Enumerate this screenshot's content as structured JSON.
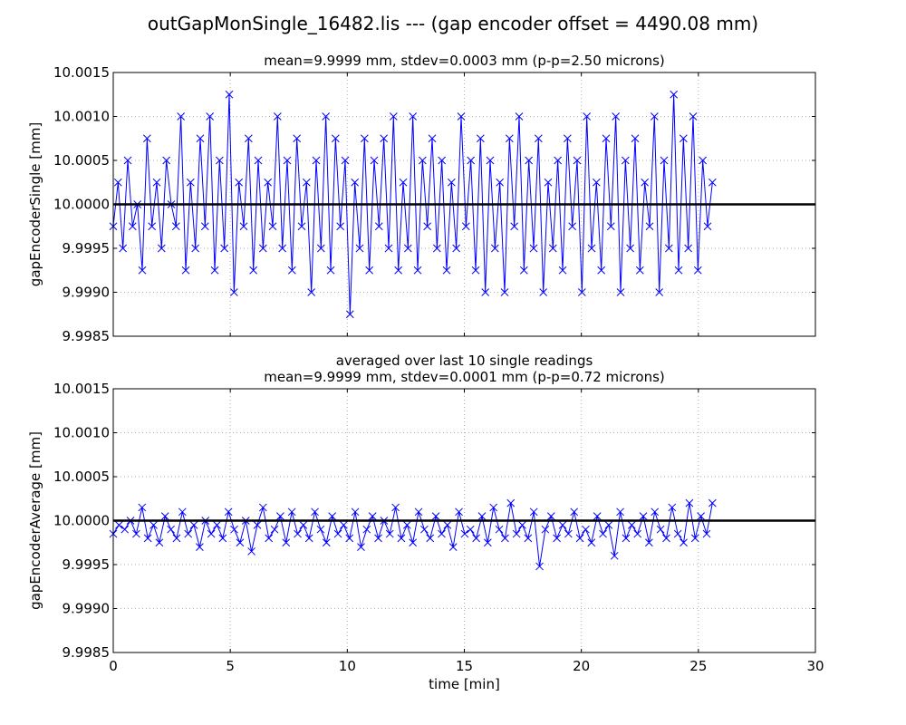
{
  "suptitle": "outGapMonSingle_16482.lis --- (gap encoder offset = 4490.08 mm)",
  "chart_data": [
    {
      "type": "line",
      "marker": "x",
      "color": "#0000ff",
      "title_lines": [
        "mean=9.9999 mm, stdev=0.0003 mm (p-p=2.50 microns)"
      ],
      "ylabel": "gapEncoderSingle [mm]",
      "xlabel": "",
      "xlim": [
        0,
        30
      ],
      "ylim": [
        9.9985,
        10.0015
      ],
      "xticks": [
        0,
        5,
        10,
        15,
        20,
        25,
        30
      ],
      "xtick_labels_visible": false,
      "yticks": [
        "9.9985",
        "9.9990",
        "9.9995",
        "10.0000",
        "10.0005",
        "10.0010",
        "10.0015"
      ],
      "grid": true,
      "hline": 10.0,
      "hline_color": "#000000",
      "x_range": [
        0,
        25.6
      ],
      "values": [
        9.99975,
        10.00025,
        9.9995,
        10.0005,
        9.99975,
        10.0,
        9.99925,
        10.00075,
        9.99975,
        10.00025,
        9.9995,
        10.0005,
        10.0,
        9.99975,
        10.001,
        9.99925,
        10.00025,
        9.9995,
        10.00075,
        9.99975,
        10.001,
        9.99925,
        10.0005,
        9.9995,
        10.00125,
        9.999,
        10.00025,
        9.99975,
        10.00075,
        9.99925,
        10.0005,
        9.9995,
        10.00025,
        9.99975,
        10.001,
        9.9995,
        10.0005,
        9.99925,
        10.00075,
        9.99975,
        10.00025,
        9.999,
        10.0005,
        9.9995,
        10.001,
        9.99925,
        10.00075,
        9.99975,
        10.0005,
        9.99875,
        10.00025,
        9.9995,
        10.00075,
        9.99925,
        10.0005,
        9.99975,
        10.00075,
        9.9995,
        10.001,
        9.99925,
        10.00025,
        9.9995,
        10.001,
        9.99925,
        10.0005,
        9.99975,
        10.00075,
        9.9995,
        10.0005,
        9.99925,
        10.00025,
        9.9995,
        10.001,
        9.99975,
        10.0005,
        9.99925,
        10.00075,
        9.999,
        10.0005,
        9.9995,
        10.00025,
        9.999,
        10.00075,
        9.99975,
        10.001,
        9.99925,
        10.0005,
        9.9995,
        10.00075,
        9.999,
        10.00025,
        9.9995,
        10.0005,
        9.99925,
        10.00075,
        9.99975,
        10.0005,
        9.999,
        10.001,
        9.9995,
        10.00025,
        9.99925,
        10.00075,
        9.99975,
        10.001,
        9.999,
        10.0005,
        9.9995,
        10.00075,
        9.99925,
        10.00025,
        9.99975,
        10.001,
        9.999,
        10.0005,
        9.9995,
        10.00125,
        9.99925,
        10.00075,
        9.9995,
        10.001,
        9.99925,
        10.0005,
        9.99975,
        10.00025
      ]
    },
    {
      "type": "line",
      "marker": "x",
      "color": "#0000ff",
      "title_lines": [
        "averaged over last 10 single readings",
        "mean=9.9999 mm, stdev=0.0001 mm (p-p=0.72 microns)"
      ],
      "ylabel": "gapEncoderAverage [mm]",
      "xlabel": "time [min]",
      "xlim": [
        0,
        30
      ],
      "ylim": [
        9.9985,
        10.0015
      ],
      "xticks": [
        0,
        5,
        10,
        15,
        20,
        25,
        30
      ],
      "xtick_labels_visible": true,
      "yticks": [
        "9.9985",
        "9.9990",
        "9.9995",
        "10.0000",
        "10.0005",
        "10.0010",
        "10.0015"
      ],
      "grid": true,
      "hline": 10.0,
      "hline_color": "#000000",
      "x_range": [
        0,
        25.6
      ],
      "values": [
        9.99985,
        9.99995,
        9.9999,
        10.0,
        9.99985,
        10.00015,
        9.9998,
        9.99995,
        9.99975,
        10.00005,
        9.9999,
        9.9998,
        10.0001,
        9.99985,
        9.99995,
        9.9997,
        10.0,
        9.99985,
        9.99995,
        9.9998,
        10.0001,
        9.9999,
        9.99975,
        10.0,
        9.99965,
        9.99995,
        10.00015,
        9.9998,
        9.9999,
        10.00005,
        9.99975,
        10.0001,
        9.99985,
        9.99995,
        9.9998,
        10.0001,
        9.9999,
        9.99975,
        10.00005,
        9.99985,
        9.99995,
        9.9998,
        10.0001,
        9.9997,
        9.9999,
        10.00005,
        9.9998,
        10.0,
        9.99985,
        10.00015,
        9.9998,
        9.99995,
        9.99975,
        10.0001,
        9.9999,
        9.9998,
        10.00005,
        9.99985,
        9.99995,
        9.9997,
        10.0001,
        9.99985,
        9.9999,
        9.9998,
        10.00005,
        9.99975,
        10.00015,
        9.9999,
        9.9998,
        10.0002,
        9.99985,
        9.99995,
        9.9998,
        10.0001,
        9.99948,
        9.9999,
        10.00005,
        9.9998,
        9.99995,
        9.99985,
        10.0001,
        9.9998,
        9.9999,
        9.99975,
        10.00005,
        9.99985,
        9.99995,
        9.9996,
        10.0001,
        9.9998,
        9.99995,
        9.99985,
        10.00005,
        9.99975,
        10.0001,
        9.9999,
        9.9998,
        10.00015,
        9.99985,
        9.99975,
        10.0002,
        9.9998,
        10.00005,
        9.99985,
        10.0002
      ]
    }
  ]
}
